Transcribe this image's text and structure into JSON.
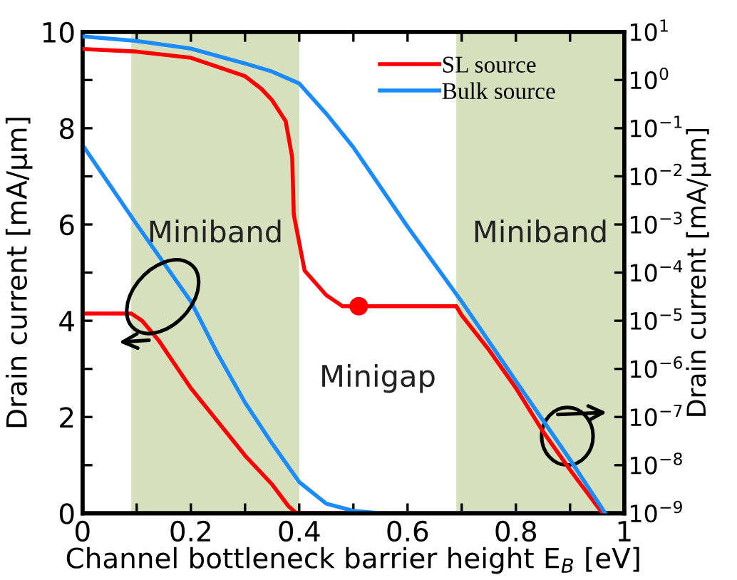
{
  "chart_data": {
    "type": "line",
    "xlabel": "Channel bottleneck barrier height E$_{B}$ [eV]",
    "ylabel": "Drain current [mA/μm]",
    "y2label": "Drain current [mA/μm]",
    "xlim": [
      0,
      1
    ],
    "xticks": [
      0,
      {
        "value": 0.1,
        "label": null
      },
      0.2,
      {
        "value": 0.3,
        "label": null
      },
      0.4,
      {
        "value": 0.5,
        "label": null
      },
      0.6,
      {
        "value": 0.7,
        "label": null
      },
      0.8,
      {
        "value": 0.9,
        "label": null
      },
      1
    ],
    "ylim": [
      0,
      10
    ],
    "yticks": [
      0,
      {
        "value": 1,
        "label": null
      },
      2,
      {
        "value": 3,
        "label": null
      },
      4,
      {
        "value": 5,
        "label": null
      },
      6,
      {
        "value": 7,
        "label": null
      },
      8,
      {
        "value": 9,
        "label": null
      },
      10
    ],
    "log": "y2",
    "y2lim": [
      1e-09,
      10
    ],
    "y2ticks": [
      {
        "value": 1e-09,
        "label": "10$^{−9}$"
      },
      {
        "value": 1e-08,
        "label": "10$^{−8}$"
      },
      {
        "value": 1e-07,
        "label": "10$^{−7}$"
      },
      {
        "value": 1e-06,
        "label": "10$^{−6}$"
      },
      {
        "value": 1e-05,
        "label": "10$^{−5}$"
      },
      {
        "value": 0.0001,
        "label": "10$^{−4}$"
      },
      {
        "value": 0.001,
        "label": "10$^{−3}$"
      },
      {
        "value": 0.01,
        "label": "10$^{−2}$"
      },
      {
        "value": 0.1,
        "label": "10$^{−1}$"
      },
      {
        "value": 1,
        "label": "10$^{0}$"
      },
      {
        "value": 10,
        "label": "10$^{1}$"
      }
    ],
    "series": [
      {
        "name": "SL source",
        "color": "#ff0000",
        "axis": "y2",
        "x": [
          0,
          0.1,
          0.2,
          0.3,
          0.33,
          0.35,
          0.375,
          0.387,
          0.39,
          0.41,
          0.45,
          0.48,
          0.69,
          0.7,
          0.75,
          0.8,
          0.85,
          0.9,
          0.96
        ],
        "values": [
          4.4,
          3.9,
          2.9,
          1.2,
          0.66,
          0.38,
          0.14,
          0.025,
          0.0016,
          0.00011,
          3.4e-05,
          2e-05,
          2e-05,
          1.3e-05,
          2.5e-06,
          4e-07,
          5e-08,
          8e-09,
          1e-09
        ]
      },
      {
        "name": "Bulk source",
        "color": "#1a8cff",
        "axis": "y2",
        "x": [
          0,
          0.1,
          0.2,
          0.3,
          0.35,
          0.4,
          0.45,
          0.5,
          0.6,
          0.7,
          0.8,
          0.9,
          0.965
        ],
        "values": [
          8.1,
          6.5,
          4.5,
          2.2,
          1.5,
          0.85,
          0.2,
          0.04,
          0.0009,
          2.5e-05,
          5.6e-07,
          1.3e-08,
          1e-09
        ]
      },
      {
        "color": "#ff0000",
        "x": [
          0,
          0.09,
          0.11,
          0.14,
          0.17,
          0.2,
          0.25,
          0.3,
          0.35,
          0.38,
          0.395,
          1
        ],
        "values": [
          4.15,
          4.15,
          4.0,
          3.6,
          3.1,
          2.6,
          1.9,
          1.2,
          0.6,
          0.15,
          0,
          0
        ]
      },
      {
        "color": "#1a8cff",
        "x": [
          0,
          0.1,
          0.2,
          0.25,
          0.3,
          0.35,
          0.4,
          0.45,
          0.5,
          0.55,
          1
        ],
        "values": [
          7.65,
          6.0,
          4.4,
          3.3,
          2.3,
          1.45,
          0.65,
          0.2,
          0.05,
          0,
          0
        ]
      },
      {
        "type": "scatter",
        "marker": "circle",
        "color": "#ff0000",
        "axis": "y2",
        "x": [
          0.51
        ],
        "values": [
          2e-05
        ]
      }
    ],
    "bands": [
      {
        "axis": "x",
        "from": 0.09,
        "to": 0.4,
        "label": "Miniband",
        "color": "#d6e0bd"
      },
      {
        "axis": "x",
        "from": 0.69,
        "to": 1,
        "label": "Miniband",
        "color": "#d6e0bd"
      }
    ],
    "annotations": [
      "Minigap"
    ],
    "legend": "top right"
  }
}
